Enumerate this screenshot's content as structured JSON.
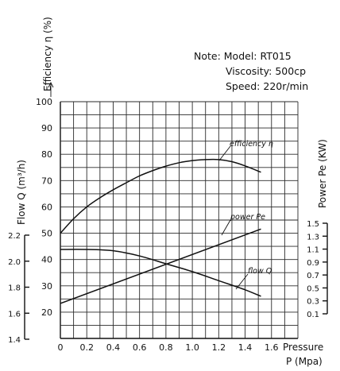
{
  "chart_data": {
    "type": "line",
    "note": {
      "line1": "Note: Model: RT015",
      "line2": "Viscosity: 500cp",
      "line3": "Speed: 220r/min"
    },
    "x_axis": {
      "label_line1": "Pressure",
      "label_line2": "P (Mpa)",
      "range": [
        0,
        1.8
      ],
      "ticks": [
        0,
        0.2,
        0.4,
        0.6,
        0.8,
        1.0,
        1.2,
        1.4,
        1.6
      ],
      "tick_labels": [
        "0",
        "0.2",
        "0.4",
        "0.6",
        "0.8",
        "1.0",
        "1.2",
        "1.4",
        "1.6"
      ]
    },
    "efficiency_axis": {
      "label": "Efficiency η (%)",
      "range": [
        10,
        100
      ],
      "ticks": [
        20,
        30,
        40,
        50,
        60,
        70,
        80,
        90,
        100
      ],
      "tick_labels": [
        "20",
        "30",
        "40",
        "50",
        "60",
        "70",
        "80",
        "90",
        "100"
      ]
    },
    "flow_axis": {
      "label": "Flow Q (m³/h)",
      "range": [
        1.4,
        2.2
      ],
      "ticks": [
        1.4,
        1.6,
        1.8,
        2.0,
        2.2
      ],
      "tick_labels": [
        "1.4",
        "1.6",
        "1.8",
        "2.0",
        "2.2"
      ]
    },
    "power_axis": {
      "label": "Power Pe (KW)",
      "range": [
        0.1,
        1.5
      ],
      "ticks": [
        0.1,
        0.3,
        0.5,
        0.7,
        0.9,
        1.1,
        1.3,
        1.5
      ],
      "tick_labels": [
        "0.1",
        "0.3",
        "0.5",
        "0.7",
        "0.9",
        "1.1",
        "1.3",
        "1.5"
      ]
    },
    "series": [
      {
        "key": "efficiency",
        "name": "efficiency η",
        "axis": "efficiency",
        "x": [
          0,
          0.1,
          0.2,
          0.3,
          0.4,
          0.5,
          0.6,
          0.7,
          0.8,
          0.9,
          1.0,
          1.1,
          1.2,
          1.3,
          1.4,
          1.52
        ],
        "y": [
          50,
          55.5,
          60,
          63.5,
          66.5,
          69.2,
          71.8,
          73.8,
          75.5,
          76.8,
          77.6,
          78,
          78,
          77.2,
          75.6,
          73.2
        ]
      },
      {
        "key": "power",
        "name": "power Pe",
        "axis": "power",
        "x": [
          0,
          1.52
        ],
        "y": [
          0.26,
          1.41
        ]
      },
      {
        "key": "flow",
        "name": "flow Q",
        "axis": "flow",
        "x": [
          0,
          0.2,
          0.4,
          0.6,
          0.8,
          1.0,
          1.2,
          1.4,
          1.52
        ],
        "y": [
          2.09,
          2.09,
          2.08,
          2.04,
          1.98,
          1.92,
          1.85,
          1.78,
          1.73
        ]
      }
    ],
    "grid": true
  }
}
